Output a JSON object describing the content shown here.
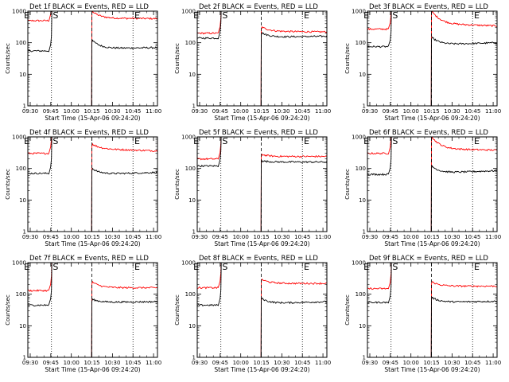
{
  "xlabel": "Start Time (15-Apr-06 09:24:20)",
  "ylabel": "Counts/sec",
  "xtick_labels": [
    "09:30",
    "09:45",
    "10:00",
    "10:15",
    "10:30",
    "10:45",
    "11:00"
  ],
  "ytick_labels": [
    "1",
    "10",
    "100",
    "1000"
  ],
  "markers": {
    "e": "E",
    "s": "S"
  },
  "colors": {
    "events": "#000000",
    "lld": "#ff0000",
    "axes": "#000000"
  },
  "chart_data": [
    {
      "type": "line",
      "title": "Det 1f BLACK = Events, RED = LLD",
      "xlabel": "Start Time (15-Apr-06 09:24:20)",
      "ylabel": "Counts/sec",
      "ylim": [
        1,
        1000
      ],
      "yscale": "log",
      "series": [
        {
          "name": "Events",
          "color": "#000000",
          "pre": 55,
          "post_jump": 120,
          "post_level": 65,
          "end": 70
        },
        {
          "name": "LLD",
          "color": "#ff0000",
          "pre": 500,
          "post_jump": 1000,
          "post_level": 600,
          "end": 580
        }
      ]
    },
    {
      "type": "line",
      "title": "Det 2f BLACK = Events, RED = LLD",
      "xlabel": "Start Time (15-Apr-06 09:24:20)",
      "ylabel": "Counts/sec",
      "ylim": [
        1,
        1000
      ],
      "yscale": "log",
      "series": [
        {
          "name": "Events",
          "color": "#000000",
          "pre": 140,
          "post_jump": 210,
          "post_level": 150,
          "end": 160
        },
        {
          "name": "LLD",
          "color": "#ff0000",
          "pre": 200,
          "post_jump": 320,
          "post_level": 230,
          "end": 220
        }
      ]
    },
    {
      "type": "line",
      "title": "Det 3f BLACK = Events, RED = LLD",
      "xlabel": "Start Time (15-Apr-06 09:24:20)",
      "ylabel": "Counts/sec",
      "ylim": [
        1,
        1000
      ],
      "yscale": "log",
      "series": [
        {
          "name": "Events",
          "color": "#000000",
          "pre": 75,
          "post_jump": 150,
          "post_level": 85,
          "end": 100
        },
        {
          "name": "LLD",
          "color": "#ff0000",
          "pre": 270,
          "post_jump": 1000,
          "post_level": 400,
          "end": 340
        }
      ]
    },
    {
      "type": "line",
      "title": "Det 4f BLACK = Events, RED = LLD",
      "xlabel": "Start Time (15-Apr-06 09:24:20)",
      "ylabel": "Counts/sec",
      "ylim": [
        1,
        1000
      ],
      "yscale": "log",
      "series": [
        {
          "name": "Events",
          "color": "#000000",
          "pre": 70,
          "post_jump": 100,
          "post_level": 65,
          "end": 75
        },
        {
          "name": "LLD",
          "color": "#ff0000",
          "pre": 300,
          "post_jump": 600,
          "post_level": 420,
          "end": 360
        }
      ]
    },
    {
      "type": "line",
      "title": "Det 5f BLACK = Events, RED = LLD",
      "xlabel": "Start Time (15-Apr-06 09:24:20)",
      "ylabel": "Counts/sec",
      "ylim": [
        1,
        1000
      ],
      "yscale": "log",
      "series": [
        {
          "name": "Events",
          "color": "#000000",
          "pre": 120,
          "post_jump": 175,
          "post_level": 160,
          "end": 160
        },
        {
          "name": "LLD",
          "color": "#ff0000",
          "pre": 200,
          "post_jump": 280,
          "post_level": 240,
          "end": 240
        }
      ]
    },
    {
      "type": "line",
      "title": "Det 6f BLACK = Events, RED = LLD",
      "xlabel": "Start Time (15-Apr-06 09:24:20)",
      "ylabel": "Counts/sec",
      "ylim": [
        1,
        1000
      ],
      "yscale": "log",
      "series": [
        {
          "name": "Events",
          "color": "#000000",
          "pre": 65,
          "post_jump": 120,
          "post_level": 70,
          "end": 85
        },
        {
          "name": "LLD",
          "color": "#ff0000",
          "pre": 300,
          "post_jump": 1000,
          "post_level": 420,
          "end": 380
        }
      ]
    },
    {
      "type": "line",
      "title": "Det 7f BLACK = Events, RED = LLD",
      "xlabel": "Start Time (15-Apr-06 09:24:20)",
      "ylabel": "Counts/sec",
      "ylim": [
        1,
        1000
      ],
      "yscale": "log",
      "series": [
        {
          "name": "Events",
          "color": "#000000",
          "pre": 45,
          "post_jump": 70,
          "post_level": 55,
          "end": 58
        },
        {
          "name": "LLD",
          "color": "#ff0000",
          "pre": 130,
          "post_jump": 250,
          "post_level": 160,
          "end": 160
        }
      ]
    },
    {
      "type": "line",
      "title": "Det 8f BLACK = Events, RED = LLD",
      "xlabel": "Start Time (15-Apr-06 09:24:20)",
      "ylabel": "Counts/sec",
      "ylim": [
        1,
        1000
      ],
      "yscale": "log",
      "series": [
        {
          "name": "Events",
          "color": "#000000",
          "pre": 45,
          "post_jump": 75,
          "post_level": 50,
          "end": 58
        },
        {
          "name": "LLD",
          "color": "#ff0000",
          "pre": 160,
          "post_jump": 300,
          "post_level": 220,
          "end": 220
        }
      ]
    },
    {
      "type": "line",
      "title": "Det 9f BLACK = Events, RED = LLD",
      "xlabel": "Start Time (15-Apr-06 09:24:20)",
      "ylabel": "Counts/sec",
      "ylim": [
        1,
        1000
      ],
      "yscale": "log",
      "series": [
        {
          "name": "Events",
          "color": "#000000",
          "pre": 55,
          "post_jump": 80,
          "post_level": 55,
          "end": 60
        },
        {
          "name": "LLD",
          "color": "#ff0000",
          "pre": 150,
          "post_jump": 250,
          "post_level": 180,
          "end": 180
        }
      ]
    }
  ]
}
